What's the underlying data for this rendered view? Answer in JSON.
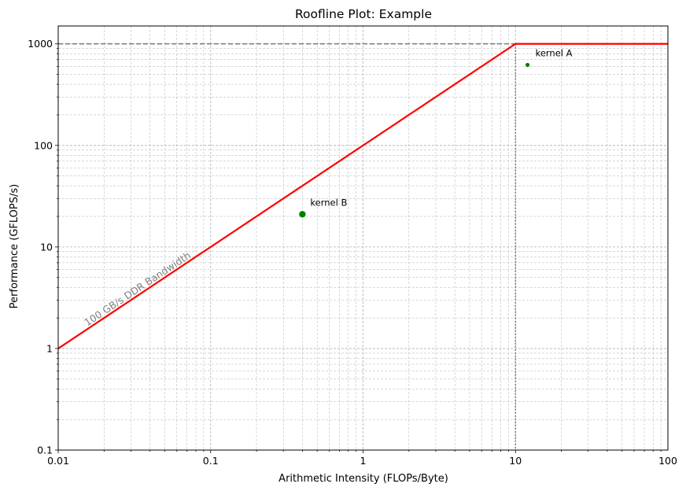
{
  "chart_data": {
    "type": "line",
    "title": "Roofline Plot: Example",
    "xlabel": "Arithmetic Intensity (FLOPs/Byte)",
    "ylabel": "Performance (GFLOPS/s)",
    "xscale": "log",
    "yscale": "log",
    "xlim": [
      0.01,
      100
    ],
    "ylim": [
      0.1,
      1500
    ],
    "xticks": [
      0.01,
      0.1,
      1,
      10,
      100
    ],
    "xtick_labels": [
      "0.01",
      "0.1",
      "1",
      "10",
      "100"
    ],
    "yticks": [
      0.1,
      1,
      10,
      100,
      1000
    ],
    "ytick_labels": [
      "0.1",
      "1",
      "10",
      "100",
      "1000"
    ],
    "grid": true,
    "roofline": {
      "color": "#ff0000",
      "points": [
        [
          0.01,
          1
        ],
        [
          10,
          1000
        ],
        [
          100,
          1000
        ]
      ],
      "bandwidth_label": "100 GB/s DDR Bandwidth",
      "bandwidth_label_color": "#808080",
      "peak": 1000,
      "ridge_point": 10
    },
    "reference_lines": {
      "peak_dashed": 1000,
      "ridge_dotted": 10,
      "color": "#808080"
    },
    "kernels": [
      {
        "name": "kernel A",
        "x": 12,
        "y": 620,
        "color": "#008000",
        "size": "small"
      },
      {
        "name": "kernel B",
        "x": 0.4,
        "y": 21,
        "color": "#008000",
        "size": "large"
      }
    ]
  }
}
